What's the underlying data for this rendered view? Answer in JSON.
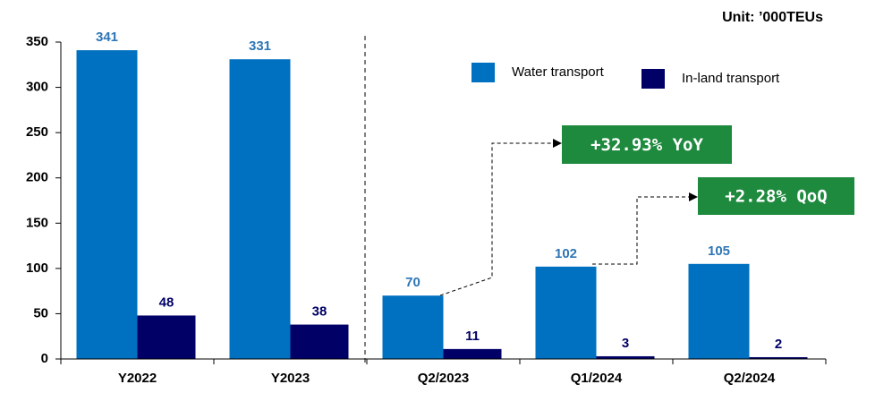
{
  "chart_data": {
    "type": "bar",
    "unit_label": "Unit: ’000TEUs",
    "categories": [
      "Y2022",
      "Y2023",
      "Q2/2023",
      "Q1/2024",
      "Q2/2024"
    ],
    "series": [
      {
        "name": "Water transport",
        "color": "#0070c0",
        "label_color": "#2e75b6",
        "values": [
          341,
          331,
          70,
          102,
          105
        ]
      },
      {
        "name": "In-land transport",
        "color": "#000066",
        "label_color": "#000066",
        "values": [
          48,
          38,
          11,
          3,
          2
        ]
      }
    ],
    "ylim": [
      0,
      350
    ],
    "yticks": [
      0,
      50,
      100,
      150,
      200,
      250,
      300,
      350
    ],
    "annotations": [
      "+32.93% YoY",
      "+2.28% QoQ"
    ],
    "annotation_color": "#1e8a3e"
  }
}
